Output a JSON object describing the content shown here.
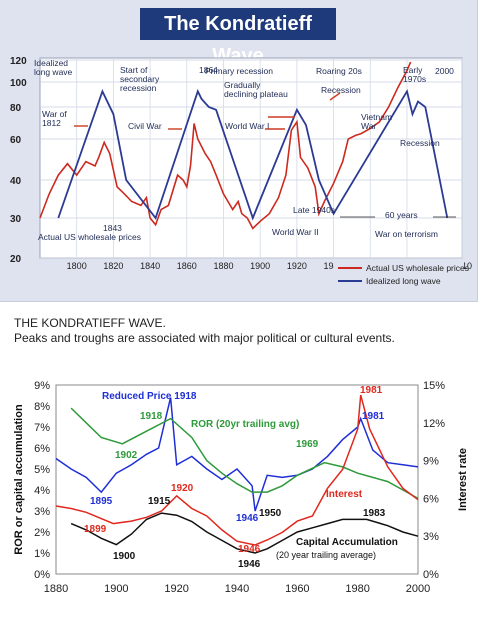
{
  "caption": {
    "line1": "THE KONDRATIEFF WAVE.",
    "line2": "Peaks and troughs are associated with major political or cultural events."
  },
  "chart_data": [
    {
      "type": "line",
      "title": "The Kondratieff Wave",
      "x_ticks": [
        1800,
        1820,
        1840,
        1860,
        1880,
        1900,
        1920,
        1940,
        1960,
        1980,
        2010
      ],
      "y_ticks": [
        20,
        30,
        40,
        60,
        80,
        100,
        120
      ],
      "xlim": [
        1780,
        2010
      ],
      "legend": [
        "Actual US wholesale prices",
        "Idealized long wave"
      ],
      "legend_position": "bottom-right",
      "colors": {
        "actual": "#cc2a1f",
        "idealized": "#2b3a93"
      },
      "series": [
        {
          "name": "Actual US wholesale prices",
          "points": [
            [
              1780,
              30
            ],
            [
              1785,
              36
            ],
            [
              1790,
              42
            ],
            [
              1795,
              47
            ],
            [
              1800,
              42
            ],
            [
              1805,
              48
            ],
            [
              1810,
              46
            ],
            [
              1812,
              50
            ],
            [
              1815,
              58
            ],
            [
              1818,
              52
            ],
            [
              1822,
              38
            ],
            [
              1826,
              36
            ],
            [
              1830,
              34
            ],
            [
              1835,
              33
            ],
            [
              1838,
              35
            ],
            [
              1840,
              30
            ],
            [
              1843,
              28
            ],
            [
              1846,
              32
            ],
            [
              1850,
              33
            ],
            [
              1855,
              42
            ],
            [
              1858,
              40
            ],
            [
              1860,
              38
            ],
            [
              1862,
              46
            ],
            [
              1864,
              69
            ],
            [
              1866,
              60
            ],
            [
              1870,
              52
            ],
            [
              1873,
              48
            ],
            [
              1876,
              42
            ],
            [
              1880,
              36
            ],
            [
              1885,
              32
            ],
            [
              1888,
              34
            ],
            [
              1890,
              31
            ],
            [
              1893,
              30
            ],
            [
              1896,
              27
            ],
            [
              1900,
              29
            ],
            [
              1905,
              31
            ],
            [
              1910,
              35
            ],
            [
              1914,
              42
            ],
            [
              1917,
              65
            ],
            [
              1920,
              70
            ],
            [
              1922,
              50
            ],
            [
              1926,
              45
            ],
            [
              1930,
              38
            ],
            [
              1932,
              31
            ],
            [
              1935,
              34
            ],
            [
              1940,
              39
            ],
            [
              1945,
              48
            ],
            [
              1948,
              60
            ],
            [
              1952,
              62
            ],
            [
              1955,
              63
            ],
            [
              1960,
              66
            ],
            [
              1965,
              70
            ],
            [
              1970,
              80
            ],
            [
              1975,
              95
            ],
            [
              1980,
              110
            ],
            [
              1982,
              118
            ]
          ]
        },
        {
          "name": "Idealized long wave",
          "points": [
            [
              1790,
              30
            ],
            [
              1814,
              92
            ],
            [
              1820,
              75
            ],
            [
              1827,
              40
            ],
            [
              1843,
              30
            ],
            [
              1866,
              92
            ],
            [
              1868,
              86
            ],
            [
              1872,
              80
            ],
            [
              1876,
              78
            ],
            [
              1896,
              30
            ],
            [
              1920,
              78
            ],
            [
              1925,
              68
            ],
            [
              1932,
              40
            ],
            [
              1940,
              31
            ],
            [
              1980,
              92
            ],
            [
              1983,
              75
            ],
            [
              1986,
              84
            ],
            [
              1990,
              80
            ],
            [
              2002,
              30
            ]
          ]
        }
      ],
      "annotations": [
        "Idealized long wave",
        "Start of secondary recession",
        "1864",
        "Primary recession",
        "Gradually declining plateau",
        "Roaring 20s",
        "Early 1970s",
        "2000",
        "War of 1812",
        "Civil War",
        "World War I",
        "Recession",
        "Vietnam War",
        "Recession",
        "1843",
        "Late 1940s",
        "World War II",
        "60 years",
        "War on terrorism",
        "Actual US wholesale prices"
      ]
    },
    {
      "type": "line",
      "x_ticks": [
        1880,
        1900,
        1920,
        1940,
        1960,
        1980,
        2000
      ],
      "xlim": [
        1880,
        2000
      ],
      "left_axis": {
        "label": "ROR or capital accumulation",
        "ticks": [
          "0%",
          "1%",
          "2%",
          "3%",
          "4%",
          "5%",
          "6%",
          "7%",
          "8%",
          "9%"
        ],
        "ylim": [
          0,
          9
        ]
      },
      "right_axis": {
        "label": "Interest rate",
        "ticks": [
          "0%",
          "3%",
          "6%",
          "9%",
          "12%",
          "15%"
        ],
        "ylim": [
          0,
          15
        ]
      },
      "series": [
        {
          "name": "Reduced Price",
          "axis": "left",
          "color": "#1f2fd6",
          "points": [
            [
              1880,
              5.5
            ],
            [
              1885,
              5.0
            ],
            [
              1890,
              4.6
            ],
            [
              1895,
              3.9
            ],
            [
              1900,
              4.8
            ],
            [
              1905,
              5.2
            ],
            [
              1910,
              5.7
            ],
            [
              1914,
              6.0
            ],
            [
              1918,
              8.4
            ],
            [
              1920,
              5.2
            ],
            [
              1925,
              5.6
            ],
            [
              1930,
              5.0
            ],
            [
              1935,
              4.5
            ],
            [
              1940,
              5.0
            ],
            [
              1945,
              4.2
            ],
            [
              1946,
              3.0
            ],
            [
              1950,
              4.7
            ],
            [
              1955,
              4.6
            ],
            [
              1960,
              4.7
            ],
            [
              1965,
              5.0
            ],
            [
              1970,
              5.6
            ],
            [
              1975,
              6.4
            ],
            [
              1980,
              7.0
            ],
            [
              1981,
              7.4
            ],
            [
              1985,
              5.9
            ],
            [
              1990,
              5.3
            ],
            [
              1995,
              5.2
            ],
            [
              2000,
              5.1
            ]
          ]
        },
        {
          "name": "ROR (20yr trailing avg)",
          "axis": "left",
          "color": "#2e9a3a",
          "points": [
            [
              1885,
              7.9
            ],
            [
              1890,
              7.2
            ],
            [
              1895,
              6.5
            ],
            [
              1902,
              6.2
            ],
            [
              1910,
              6.8
            ],
            [
              1918,
              7.4
            ],
            [
              1925,
              6.5
            ],
            [
              1930,
              5.4
            ],
            [
              1935,
              4.8
            ],
            [
              1940,
              4.3
            ],
            [
              1945,
              3.9
            ],
            [
              1950,
              3.9
            ],
            [
              1955,
              4.2
            ],
            [
              1960,
              4.7
            ],
            [
              1969,
              5.3
            ],
            [
              1975,
              5.1
            ],
            [
              1980,
              4.8
            ],
            [
              1985,
              4.6
            ],
            [
              1990,
              4.4
            ],
            [
              1995,
              4.0
            ],
            [
              2000,
              3.6
            ]
          ]
        },
        {
          "name": "Interest",
          "axis": "right",
          "color": "#e0281e",
          "points": [
            [
              1880,
              5.4
            ],
            [
              1885,
              5.2
            ],
            [
              1890,
              4.9
            ],
            [
              1899,
              4.0
            ],
            [
              1905,
              4.2
            ],
            [
              1910,
              4.5
            ],
            [
              1915,
              5.0
            ],
            [
              1920,
              6.2
            ],
            [
              1925,
              5.2
            ],
            [
              1930,
              4.6
            ],
            [
              1935,
              3.5
            ],
            [
              1940,
              2.6
            ],
            [
              1946,
              2.3
            ],
            [
              1950,
              2.7
            ],
            [
              1955,
              3.3
            ],
            [
              1960,
              4.2
            ],
            [
              1965,
              4.6
            ],
            [
              1970,
              6.8
            ],
            [
              1975,
              8.3
            ],
            [
              1980,
              11.5
            ],
            [
              1981,
              14.2
            ],
            [
              1984,
              11.5
            ],
            [
              1990,
              8.5
            ],
            [
              1995,
              6.8
            ],
            [
              2000,
              5.9
            ]
          ]
        },
        {
          "name": "Capital Accumulation (20 year trailing average)",
          "axis": "left",
          "color": "#111111",
          "points": [
            [
              1885,
              2.4
            ],
            [
              1890,
              2.1
            ],
            [
              1895,
              1.7
            ],
            [
              1900,
              1.4
            ],
            [
              1905,
              1.9
            ],
            [
              1910,
              2.6
            ],
            [
              1915,
              2.9
            ],
            [
              1920,
              2.8
            ],
            [
              1925,
              2.5
            ],
            [
              1930,
              2.0
            ],
            [
              1935,
              1.6
            ],
            [
              1940,
              1.2
            ],
            [
              1946,
              1.0
            ],
            [
              1950,
              1.2
            ],
            [
              1955,
              1.6
            ],
            [
              1960,
              2.0
            ],
            [
              1965,
              2.2
            ],
            [
              1970,
              2.4
            ],
            [
              1975,
              2.6
            ],
            [
              1983,
              2.6
            ],
            [
              1990,
              2.3
            ],
            [
              1995,
              2.0
            ],
            [
              2000,
              1.8
            ]
          ]
        }
      ],
      "annotations": [
        "Reduced Price 1918",
        "1918",
        "1902",
        "ROR (20yr trailing avg)",
        "1969",
        "1895",
        "1981",
        "1981",
        "1946",
        "1950",
        "1920",
        "Interest",
        "1915",
        "1899",
        "1900",
        "1983",
        "Capital Accumulation",
        "(20 year trailing average)",
        "1946",
        "1946"
      ]
    }
  ]
}
